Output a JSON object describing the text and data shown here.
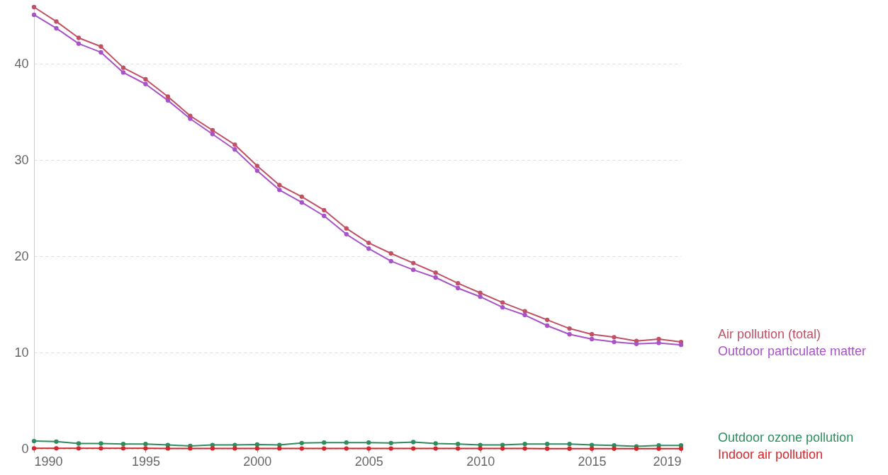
{
  "chart_data": {
    "type": "line",
    "x": [
      1990,
      1991,
      1992,
      1993,
      1994,
      1995,
      1996,
      1997,
      1998,
      1999,
      2000,
      2001,
      2002,
      2003,
      2004,
      2005,
      2006,
      2007,
      2008,
      2009,
      2010,
      2011,
      2012,
      2013,
      2014,
      2015,
      2016,
      2017,
      2018,
      2019
    ],
    "series": [
      {
        "name": "Air pollution (total)",
        "color": "#c15065",
        "values": [
          45.9,
          44.4,
          42.7,
          41.8,
          39.6,
          38.4,
          36.6,
          34.6,
          33.1,
          31.6,
          29.4,
          27.4,
          26.2,
          24.8,
          22.9,
          21.4,
          20.3,
          19.3,
          18.3,
          17.2,
          16.2,
          15.2,
          14.3,
          13.4,
          12.5,
          11.9,
          11.6,
          11.2,
          11.4,
          11.1
        ]
      },
      {
        "name": "Outdoor particulate matter",
        "color": "#a752c8",
        "values": [
          45.1,
          43.7,
          42.1,
          41.2,
          39.1,
          37.9,
          36.2,
          34.3,
          32.7,
          31.1,
          28.9,
          26.9,
          25.6,
          24.2,
          22.3,
          20.8,
          19.5,
          18.6,
          17.8,
          16.7,
          15.8,
          14.7,
          13.9,
          12.8,
          11.9,
          11.4,
          11.1,
          10.9,
          11.0,
          10.8
        ]
      },
      {
        "name": "Outdoor ozone pollution",
        "color": "#2e8c5f",
        "values": [
          0.8,
          0.75,
          0.55,
          0.55,
          0.5,
          0.5,
          0.4,
          0.3,
          0.4,
          0.4,
          0.45,
          0.4,
          0.6,
          0.65,
          0.65,
          0.65,
          0.6,
          0.7,
          0.55,
          0.5,
          0.4,
          0.4,
          0.5,
          0.5,
          0.5,
          0.4,
          0.35,
          0.25,
          0.35,
          0.35
        ]
      },
      {
        "name": "Indoor air pollution",
        "color": "#d7262b",
        "values": [
          0.05,
          0.05,
          0.05,
          0.05,
          0.05,
          0.05,
          0.04,
          0.04,
          0.04,
          0.04,
          0.04,
          0.04,
          0.03,
          0.03,
          0.03,
          0.03,
          0.03,
          0.03,
          0.03,
          0.03,
          0.03,
          0.03,
          0.03,
          0.02,
          0.02,
          0.02,
          0.02,
          0.02,
          0.02,
          0.02
        ]
      }
    ],
    "xlim": [
      1990,
      2019
    ],
    "xticks": [
      1990,
      1995,
      2000,
      2005,
      2010,
      2015,
      2019
    ],
    "ylim": [
      0,
      45.9
    ],
    "yticks": [
      0,
      10,
      20,
      30,
      40
    ],
    "grid": "y",
    "legend": "right",
    "marker": "circle",
    "line_style": "solid"
  }
}
